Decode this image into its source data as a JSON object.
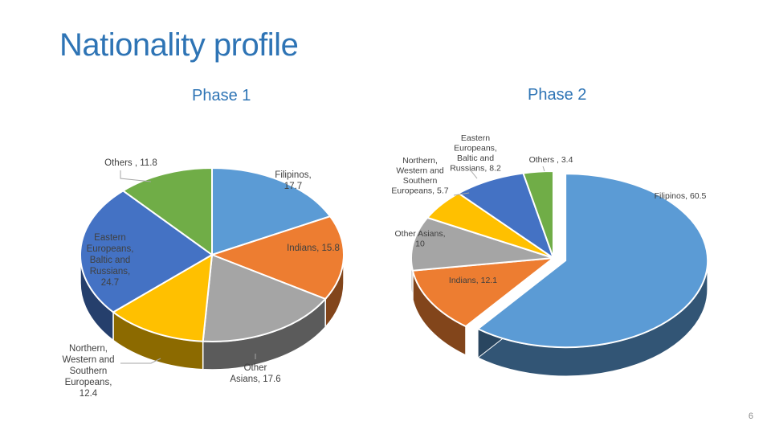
{
  "slide": {
    "title": "Nationality profile",
    "page_number": "6"
  },
  "colors": {
    "title": "#2e74b5",
    "blue_light": "#5b9bd5",
    "orange": "#ed7d31",
    "gray": "#a5a5a5",
    "gold": "#ffc000",
    "blue_dark": "#4472c4",
    "green": "#70ad47"
  },
  "chart_data": [
    {
      "type": "pie",
      "title": "Phase 1",
      "slices": [
        {
          "label": "Filipinos",
          "value": 17.7,
          "color": "#5b9bd5",
          "label_lines": [
            "Filipinos,",
            "17.7"
          ]
        },
        {
          "label": "Indians",
          "value": 15.8,
          "color": "#ed7d31",
          "label_lines": [
            "Indians, 15.8"
          ]
        },
        {
          "label": "Other Asians",
          "value": 17.6,
          "color": "#a5a5a5",
          "label_lines": [
            "Other",
            "Asians, 17.6"
          ]
        },
        {
          "label": "Northern, Western and Southern Europeans",
          "value": 12.4,
          "color": "#ffc000",
          "label_lines": [
            "Northern,",
            "Western and",
            "Southern",
            "Europeans,",
            "12.4"
          ]
        },
        {
          "label": "Eastern Europeans, Baltic and Russians",
          "value": 24.7,
          "color": "#4472c4",
          "label_lines": [
            "Eastern",
            "Europeans,",
            "Baltic and",
            "Russians,",
            "24.7"
          ]
        },
        {
          "label": "Others",
          "value": 11.8,
          "color": "#70ad47",
          "label_lines": [
            "Others , 11.8"
          ]
        }
      ]
    },
    {
      "type": "pie",
      "title": "Phase 2",
      "slices": [
        {
          "label": "Filipinos",
          "value": 60.5,
          "color": "#5b9bd5",
          "label_lines": [
            "Filipinos, 60.5"
          ]
        },
        {
          "label": "Indians",
          "value": 12.1,
          "color": "#ed7d31",
          "label_lines": [
            "Indians, 12.1"
          ]
        },
        {
          "label": "Other Asians",
          "value": 10,
          "color": "#a5a5a5",
          "label_lines": [
            "Other Asians,",
            "10"
          ]
        },
        {
          "label": "Northern, Western and Southern Europeans",
          "value": 5.7,
          "color": "#ffc000",
          "label_lines": [
            "Northern,",
            "Western and",
            "Southern",
            "Europeans, 5.7"
          ]
        },
        {
          "label": "Eastern Europeans, Baltic and Russians",
          "value": 8.2,
          "color": "#4472c4",
          "label_lines": [
            "Eastern",
            "Europeans,",
            "Baltic and",
            "Russians, 8.2"
          ]
        },
        {
          "label": "Others",
          "value": 3.4,
          "color": "#70ad47",
          "label_lines": [
            "Others , 3.4"
          ]
        }
      ]
    }
  ]
}
